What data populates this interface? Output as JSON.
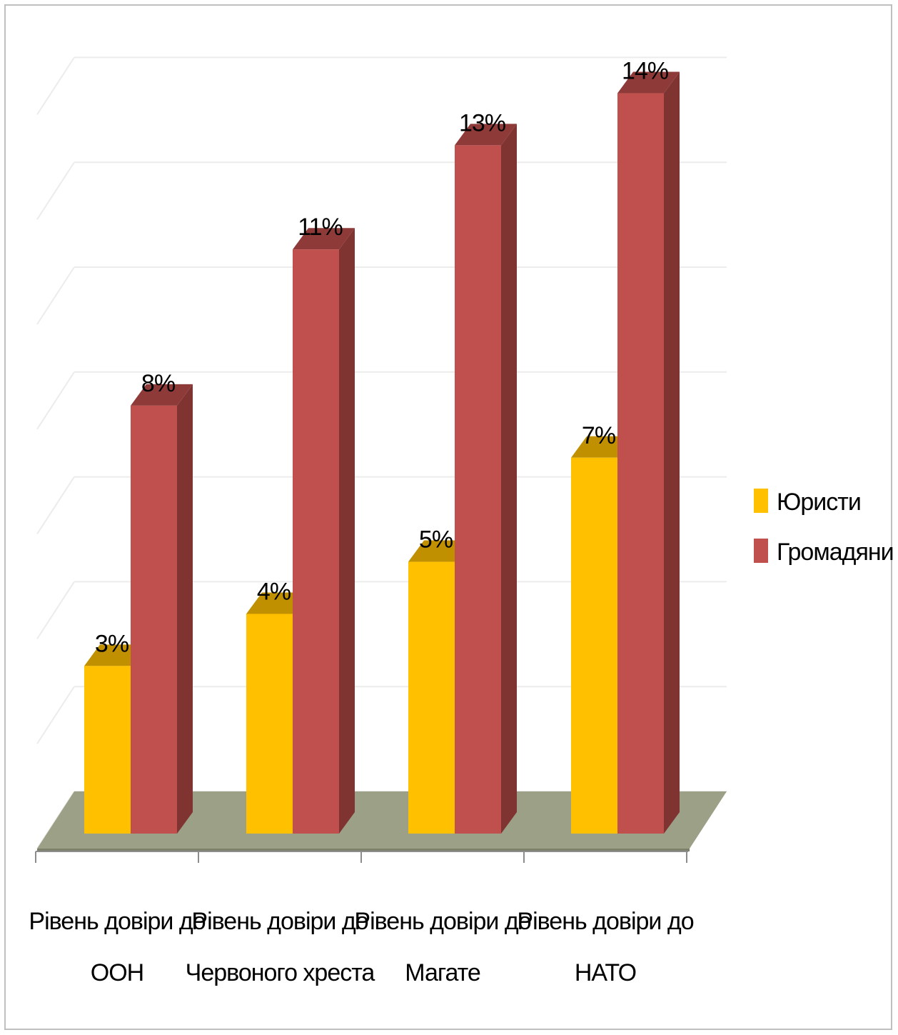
{
  "chart_data": {
    "type": "bar",
    "categories": [
      [
        "Рівень довіри до",
        "ООН"
      ],
      [
        "Рівень довіри до",
        "Червоного хреста"
      ],
      [
        "Рівень довіри до",
        "Магате"
      ],
      [
        "Рівень довіри до",
        "НАТО"
      ]
    ],
    "series": [
      {
        "name": "Юристи",
        "values": [
          3,
          4,
          5,
          7
        ],
        "labels": [
          "3%",
          "4%",
          "5%",
          "7%"
        ],
        "color": "#FFC000",
        "top_color": "#C09000",
        "side_color": "#B08000"
      },
      {
        "name": "Громадяни",
        "values": [
          8,
          11,
          13,
          14
        ],
        "labels": [
          "8%",
          "11%",
          "13%",
          "14%"
        ],
        "color": "#C0504D",
        "top_color": "#8E3A38",
        "side_color": "#7F3432"
      }
    ],
    "ylim": [
      0,
      14
    ],
    "grid": true,
    "legend": "right",
    "floor_color": "#9CA086"
  }
}
